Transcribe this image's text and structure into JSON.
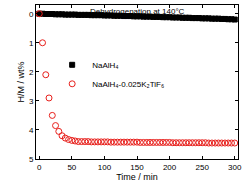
{
  "chart_data": {
    "type": "scatter",
    "annotation": "Dehydrogenation at 140°C",
    "x_label": "Time / min",
    "y_label": "H/M / wt%",
    "x": [
      0,
      5,
      10,
      15,
      20,
      25,
      30,
      35,
      40,
      45,
      50,
      55,
      60,
      65,
      70,
      75,
      80,
      85,
      90,
      95,
      100,
      105,
      110,
      115,
      120,
      125,
      130,
      135,
      140,
      145,
      150,
      155,
      160,
      165,
      170,
      175,
      180,
      185,
      190,
      195,
      200,
      205,
      210,
      215,
      220,
      225,
      230,
      235,
      240,
      245,
      250,
      255,
      260,
      265,
      270,
      275,
      280,
      285,
      290,
      295,
      300
    ],
    "series": [
      {
        "name": "NaAlH₄",
        "color": "#000000",
        "marker": "square",
        "values": [
          0,
          0,
          0.01,
          0.01,
          0.01,
          0.02,
          0.02,
          0.02,
          0.03,
          0.03,
          0.03,
          0.03,
          0.04,
          0.04,
          0.04,
          0.04,
          0.05,
          0.05,
          0.05,
          0.05,
          0.06,
          0.06,
          0.06,
          0.07,
          0.07,
          0.07,
          0.08,
          0.08,
          0.08,
          0.09,
          0.09,
          0.09,
          0.1,
          0.1,
          0.1,
          0.11,
          0.11,
          0.11,
          0.12,
          0.12,
          0.12,
          0.13,
          0.13,
          0.13,
          0.14,
          0.14,
          0.14,
          0.15,
          0.15,
          0.15,
          0.16,
          0.16,
          0.16,
          0.17,
          0.17,
          0.17,
          0.18,
          0.18,
          0.19,
          0.19,
          0.2
        ]
      },
      {
        "name": "NaAlH₄-0.025K₂TiF₆",
        "color": "#e8201c",
        "marker": "circle-open",
        "values": [
          0,
          1.0,
          2.1,
          2.9,
          3.5,
          3.85,
          4.05,
          4.2,
          4.28,
          4.33,
          4.36,
          4.38,
          4.4,
          4.4,
          4.4,
          4.4,
          4.41,
          4.41,
          4.41,
          4.41,
          4.41,
          4.41,
          4.42,
          4.42,
          4.42,
          4.42,
          4.42,
          4.42,
          4.42,
          4.42,
          4.42,
          4.43,
          4.43,
          4.43,
          4.43,
          4.43,
          4.43,
          4.43,
          4.43,
          4.43,
          4.43,
          4.44,
          4.44,
          4.44,
          4.44,
          4.44,
          4.44,
          4.44,
          4.44,
          4.44,
          4.44,
          4.44,
          4.45,
          4.45,
          4.45,
          4.45,
          4.45,
          4.45,
          4.45,
          4.45,
          4.45
        ]
      }
    ],
    "xlim": [
      -5,
      305
    ],
    "xticks": [
      0,
      50,
      100,
      150,
      200,
      250,
      300
    ],
    "ylim": [
      5,
      -0.3
    ],
    "yticks": [
      0,
      1,
      2,
      3,
      4,
      5
    ],
    "legend": "left",
    "grid": false
  }
}
